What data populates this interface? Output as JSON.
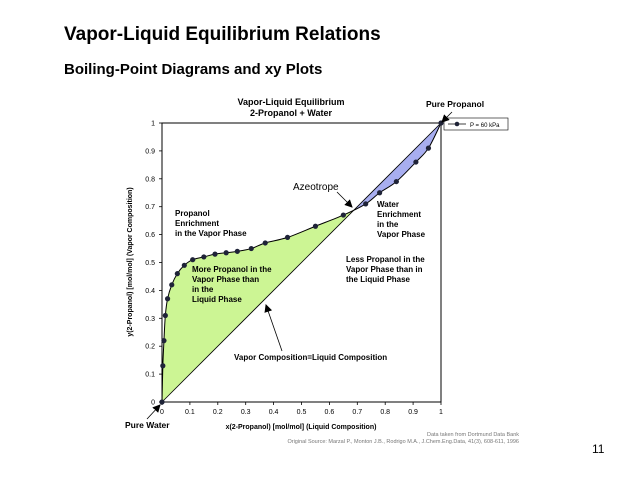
{
  "slide": {
    "title": "Vapor-Liquid Equilibrium Relations",
    "subtitle": "Boiling-Point Diagrams and xy Plots",
    "page_number": "11"
  },
  "chart_data": {
    "type": "scatter",
    "title": "Vapor-Liquid Equilibrium",
    "subtitle": "2-Propanol + Water",
    "xlabel": "x(2-Propanol) [mol/mol] (Liquid Composition)",
    "ylabel": "y(2-Propanol) [mol/mol] (Vapor Composition)",
    "xlim": [
      0,
      1
    ],
    "ylim": [
      0,
      1
    ],
    "x_ticks": [
      "0",
      "0.1",
      "0.2",
      "0.3",
      "0.4",
      "0.5",
      "0.6",
      "0.7",
      "0.8",
      "0.9",
      "1"
    ],
    "y_ticks": [
      "0",
      "0.1",
      "0.2",
      "0.3",
      "0.4",
      "0.5",
      "0.6",
      "0.7",
      "0.8",
      "0.9",
      "1"
    ],
    "grid": false,
    "legend": {
      "position": "top-right",
      "label": "P = 60 kPa"
    },
    "series": [
      {
        "name": "P = 60 kPa",
        "points": [
          [
            0.0,
            0.0
          ],
          [
            0.003,
            0.13
          ],
          [
            0.007,
            0.22
          ],
          [
            0.012,
            0.31
          ],
          [
            0.02,
            0.37
          ],
          [
            0.035,
            0.42
          ],
          [
            0.055,
            0.46
          ],
          [
            0.08,
            0.49
          ],
          [
            0.11,
            0.51
          ],
          [
            0.15,
            0.52
          ],
          [
            0.19,
            0.53
          ],
          [
            0.23,
            0.535
          ],
          [
            0.27,
            0.54
          ],
          [
            0.32,
            0.55
          ],
          [
            0.37,
            0.57
          ],
          [
            0.45,
            0.59
          ],
          [
            0.55,
            0.63
          ],
          [
            0.65,
            0.67
          ],
          [
            0.73,
            0.71
          ],
          [
            0.78,
            0.75
          ],
          [
            0.84,
            0.79
          ],
          [
            0.91,
            0.86
          ],
          [
            0.955,
            0.91
          ],
          [
            1.0,
            1.0
          ]
        ]
      }
    ],
    "diagonal_label": "Vapor Composition=Liquid Composition",
    "annotations": {
      "pure_propanol": "Pure Propanol",
      "pure_water": "Pure Water",
      "azeotrope": "Azeotrope",
      "propanol_enrichment": [
        "Propanol",
        "Enrichment",
        "in the Vapor Phase"
      ],
      "more_propanol": [
        "More Propanol in the",
        "Vapor Phase than",
        "in the",
        "Liquid Phase"
      ],
      "water_enrichment": [
        "Water",
        "Enrichment",
        "in the",
        "Vapor Phase"
      ],
      "less_propanol": [
        "Less Propanol in the",
        "Vapor Phase than in",
        "the Liquid Phase"
      ]
    },
    "source": {
      "line1": "Data taken from Dortmund Data Bank",
      "line2": "Original Source: Marzal P., Monton J.B., Rodrigo M.A., J.Chem.Eng.Data, 41(3), 608-611, 1996"
    },
    "colors": {
      "below_fill": "#ccf594",
      "above_fill": "#a8aef0",
      "marker": "#1f2338",
      "axis": "#000000"
    }
  }
}
